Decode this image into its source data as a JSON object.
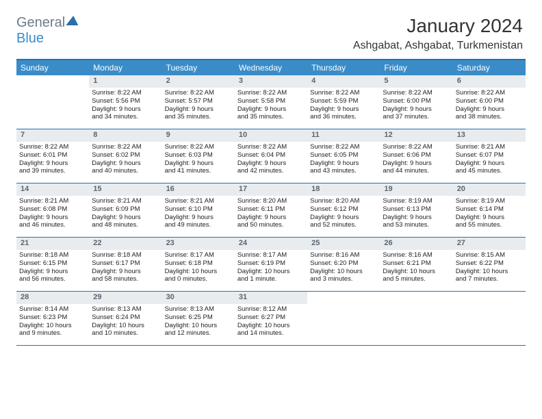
{
  "brand": {
    "part1": "General",
    "part2": "Blue"
  },
  "title": "January 2024",
  "location": "Ashgabat, Ashgabat, Turkmenistan",
  "colors": {
    "header_bg": "#3a8cc8",
    "border": "#2a6fa8",
    "daynum_bg": "#e8ecef",
    "daynum_fg": "#5a6570",
    "text": "#222222"
  },
  "weekdays": [
    "Sunday",
    "Monday",
    "Tuesday",
    "Wednesday",
    "Thursday",
    "Friday",
    "Saturday"
  ],
  "weeks": [
    [
      {
        "n": "",
        "empty": true
      },
      {
        "n": "1",
        "sr": "Sunrise: 8:22 AM",
        "ss": "Sunset: 5:56 PM",
        "d1": "Daylight: 9 hours",
        "d2": "and 34 minutes."
      },
      {
        "n": "2",
        "sr": "Sunrise: 8:22 AM",
        "ss": "Sunset: 5:57 PM",
        "d1": "Daylight: 9 hours",
        "d2": "and 35 minutes."
      },
      {
        "n": "3",
        "sr": "Sunrise: 8:22 AM",
        "ss": "Sunset: 5:58 PM",
        "d1": "Daylight: 9 hours",
        "d2": "and 35 minutes."
      },
      {
        "n": "4",
        "sr": "Sunrise: 8:22 AM",
        "ss": "Sunset: 5:59 PM",
        "d1": "Daylight: 9 hours",
        "d2": "and 36 minutes."
      },
      {
        "n": "5",
        "sr": "Sunrise: 8:22 AM",
        "ss": "Sunset: 6:00 PM",
        "d1": "Daylight: 9 hours",
        "d2": "and 37 minutes."
      },
      {
        "n": "6",
        "sr": "Sunrise: 8:22 AM",
        "ss": "Sunset: 6:00 PM",
        "d1": "Daylight: 9 hours",
        "d2": "and 38 minutes."
      }
    ],
    [
      {
        "n": "7",
        "sr": "Sunrise: 8:22 AM",
        "ss": "Sunset: 6:01 PM",
        "d1": "Daylight: 9 hours",
        "d2": "and 39 minutes."
      },
      {
        "n": "8",
        "sr": "Sunrise: 8:22 AM",
        "ss": "Sunset: 6:02 PM",
        "d1": "Daylight: 9 hours",
        "d2": "and 40 minutes."
      },
      {
        "n": "9",
        "sr": "Sunrise: 8:22 AM",
        "ss": "Sunset: 6:03 PM",
        "d1": "Daylight: 9 hours",
        "d2": "and 41 minutes."
      },
      {
        "n": "10",
        "sr": "Sunrise: 8:22 AM",
        "ss": "Sunset: 6:04 PM",
        "d1": "Daylight: 9 hours",
        "d2": "and 42 minutes."
      },
      {
        "n": "11",
        "sr": "Sunrise: 8:22 AM",
        "ss": "Sunset: 6:05 PM",
        "d1": "Daylight: 9 hours",
        "d2": "and 43 minutes."
      },
      {
        "n": "12",
        "sr": "Sunrise: 8:22 AM",
        "ss": "Sunset: 6:06 PM",
        "d1": "Daylight: 9 hours",
        "d2": "and 44 minutes."
      },
      {
        "n": "13",
        "sr": "Sunrise: 8:21 AM",
        "ss": "Sunset: 6:07 PM",
        "d1": "Daylight: 9 hours",
        "d2": "and 45 minutes."
      }
    ],
    [
      {
        "n": "14",
        "sr": "Sunrise: 8:21 AM",
        "ss": "Sunset: 6:08 PM",
        "d1": "Daylight: 9 hours",
        "d2": "and 46 minutes."
      },
      {
        "n": "15",
        "sr": "Sunrise: 8:21 AM",
        "ss": "Sunset: 6:09 PM",
        "d1": "Daylight: 9 hours",
        "d2": "and 48 minutes."
      },
      {
        "n": "16",
        "sr": "Sunrise: 8:21 AM",
        "ss": "Sunset: 6:10 PM",
        "d1": "Daylight: 9 hours",
        "d2": "and 49 minutes."
      },
      {
        "n": "17",
        "sr": "Sunrise: 8:20 AM",
        "ss": "Sunset: 6:11 PM",
        "d1": "Daylight: 9 hours",
        "d2": "and 50 minutes."
      },
      {
        "n": "18",
        "sr": "Sunrise: 8:20 AM",
        "ss": "Sunset: 6:12 PM",
        "d1": "Daylight: 9 hours",
        "d2": "and 52 minutes."
      },
      {
        "n": "19",
        "sr": "Sunrise: 8:19 AM",
        "ss": "Sunset: 6:13 PM",
        "d1": "Daylight: 9 hours",
        "d2": "and 53 minutes."
      },
      {
        "n": "20",
        "sr": "Sunrise: 8:19 AM",
        "ss": "Sunset: 6:14 PM",
        "d1": "Daylight: 9 hours",
        "d2": "and 55 minutes."
      }
    ],
    [
      {
        "n": "21",
        "sr": "Sunrise: 8:18 AM",
        "ss": "Sunset: 6:15 PM",
        "d1": "Daylight: 9 hours",
        "d2": "and 56 minutes."
      },
      {
        "n": "22",
        "sr": "Sunrise: 8:18 AM",
        "ss": "Sunset: 6:17 PM",
        "d1": "Daylight: 9 hours",
        "d2": "and 58 minutes."
      },
      {
        "n": "23",
        "sr": "Sunrise: 8:17 AM",
        "ss": "Sunset: 6:18 PM",
        "d1": "Daylight: 10 hours",
        "d2": "and 0 minutes."
      },
      {
        "n": "24",
        "sr": "Sunrise: 8:17 AM",
        "ss": "Sunset: 6:19 PM",
        "d1": "Daylight: 10 hours",
        "d2": "and 1 minute."
      },
      {
        "n": "25",
        "sr": "Sunrise: 8:16 AM",
        "ss": "Sunset: 6:20 PM",
        "d1": "Daylight: 10 hours",
        "d2": "and 3 minutes."
      },
      {
        "n": "26",
        "sr": "Sunrise: 8:16 AM",
        "ss": "Sunset: 6:21 PM",
        "d1": "Daylight: 10 hours",
        "d2": "and 5 minutes."
      },
      {
        "n": "27",
        "sr": "Sunrise: 8:15 AM",
        "ss": "Sunset: 6:22 PM",
        "d1": "Daylight: 10 hours",
        "d2": "and 7 minutes."
      }
    ],
    [
      {
        "n": "28",
        "sr": "Sunrise: 8:14 AM",
        "ss": "Sunset: 6:23 PM",
        "d1": "Daylight: 10 hours",
        "d2": "and 9 minutes."
      },
      {
        "n": "29",
        "sr": "Sunrise: 8:13 AM",
        "ss": "Sunset: 6:24 PM",
        "d1": "Daylight: 10 hours",
        "d2": "and 10 minutes."
      },
      {
        "n": "30",
        "sr": "Sunrise: 8:13 AM",
        "ss": "Sunset: 6:25 PM",
        "d1": "Daylight: 10 hours",
        "d2": "and 12 minutes."
      },
      {
        "n": "31",
        "sr": "Sunrise: 8:12 AM",
        "ss": "Sunset: 6:27 PM",
        "d1": "Daylight: 10 hours",
        "d2": "and 14 minutes."
      },
      {
        "n": "",
        "empty": true
      },
      {
        "n": "",
        "empty": true
      },
      {
        "n": "",
        "empty": true
      }
    ]
  ]
}
